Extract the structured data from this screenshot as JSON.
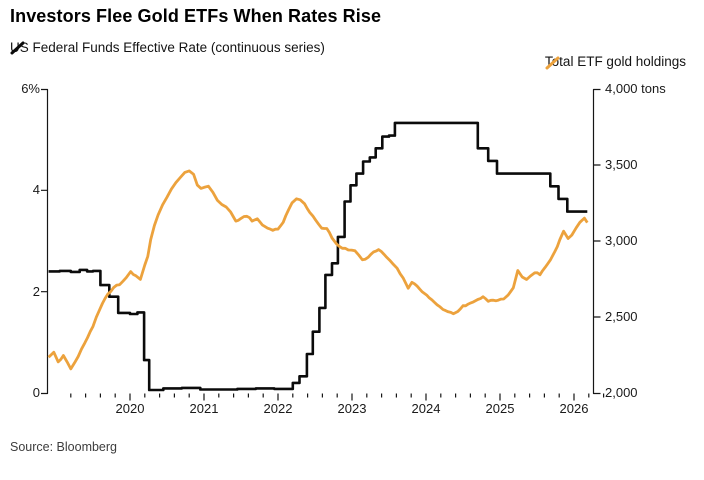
{
  "source": "Source: Bloomberg",
  "legend": {
    "left": {
      "label": "US Federal Funds Effective Rate (continuous series)",
      "color": "#0b0b0b"
    },
    "right": {
      "label": "Total ETF gold holdings",
      "color": "#eca23d"
    }
  },
  "chart_data": {
    "type": "line",
    "title": "Investors Flee Gold ETFs When Rates Rise",
    "grid": false,
    "legend_position": "top",
    "x_axis": {
      "range": [
        2018.9,
        2026.55
      ],
      "minor_tick_step_years": 0.2,
      "year_tick_values": [
        2020,
        2021,
        2022,
        2023,
        2024,
        2025,
        2026
      ],
      "year_labels": [
        "2020",
        "2021",
        "2022",
        "2023",
        "2024",
        "2025",
        "2026"
      ]
    },
    "left_axis": {
      "unit": "%",
      "range": [
        0,
        6
      ],
      "ticks": [
        {
          "v": 0,
          "label": "0"
        },
        {
          "v": 2,
          "label": "2"
        },
        {
          "v": 4,
          "label": "4"
        },
        {
          "v": 6,
          "label": "6%"
        }
      ]
    },
    "right_axis": {
      "unit": "tons",
      "range": [
        2000,
        4000
      ],
      "ticks": [
        {
          "v": 2000,
          "label": "2,000"
        },
        {
          "v": 2500,
          "label": "2,500"
        },
        {
          "v": 3000,
          "label": "3,000"
        },
        {
          "v": 3500,
          "label": "3,500"
        },
        {
          "v": 4000,
          "label": "4,000 tons"
        }
      ]
    },
    "series": [
      {
        "name": "US Federal Funds Effective Rate (continuous series)",
        "axis": "left",
        "color": "#0b0b0b",
        "style": "step",
        "stroke_width": 2.6,
        "points": [
          [
            2018.9,
            2.4
          ],
          [
            2019.05,
            2.41
          ],
          [
            2019.2,
            2.39
          ],
          [
            2019.32,
            2.43
          ],
          [
            2019.42,
            2.4
          ],
          [
            2019.5,
            2.41
          ],
          [
            2019.6,
            2.13
          ],
          [
            2019.72,
            1.9
          ],
          [
            2019.84,
            1.58
          ],
          [
            2020.0,
            1.56
          ],
          [
            2020.1,
            1.59
          ],
          [
            2020.19,
            0.65
          ],
          [
            2020.26,
            0.06
          ],
          [
            2020.45,
            0.09
          ],
          [
            2020.7,
            0.1
          ],
          [
            2020.95,
            0.07
          ],
          [
            2021.2,
            0.07
          ],
          [
            2021.45,
            0.08
          ],
          [
            2021.7,
            0.09
          ],
          [
            2021.95,
            0.08
          ],
          [
            2022.2,
            0.2
          ],
          [
            2022.29,
            0.33
          ],
          [
            2022.39,
            0.77
          ],
          [
            2022.47,
            1.21
          ],
          [
            2022.56,
            1.68
          ],
          [
            2022.64,
            2.33
          ],
          [
            2022.73,
            2.56
          ],
          [
            2022.81,
            3.08
          ],
          [
            2022.9,
            3.78
          ],
          [
            2022.98,
            4.1
          ],
          [
            2023.06,
            4.33
          ],
          [
            2023.15,
            4.57
          ],
          [
            2023.24,
            4.65
          ],
          [
            2023.32,
            4.83
          ],
          [
            2023.41,
            5.06
          ],
          [
            2023.5,
            5.08
          ],
          [
            2023.58,
            5.33
          ],
          [
            2024.7,
            4.83
          ],
          [
            2024.84,
            4.58
          ],
          [
            2024.96,
            4.33
          ],
          [
            2025.68,
            4.08
          ],
          [
            2025.79,
            3.83
          ],
          [
            2025.91,
            3.58
          ],
          [
            2026.18,
            3.58
          ]
        ]
      },
      {
        "name": "Total ETF gold holdings",
        "axis": "right",
        "color": "#eca23d",
        "style": "line",
        "stroke_width": 2.8,
        "points": [
          [
            2018.9,
            2235
          ],
          [
            2018.97,
            2270
          ],
          [
            2019.03,
            2205
          ],
          [
            2019.1,
            2245
          ],
          [
            2019.2,
            2160
          ],
          [
            2019.3,
            2240
          ],
          [
            2019.39,
            2330
          ],
          [
            2019.5,
            2440
          ],
          [
            2019.59,
            2550
          ],
          [
            2019.7,
            2650
          ],
          [
            2019.78,
            2695
          ],
          [
            2019.86,
            2715
          ],
          [
            2019.95,
            2760
          ],
          [
            2020.01,
            2800
          ],
          [
            2020.08,
            2770
          ],
          [
            2020.14,
            2745
          ],
          [
            2020.2,
            2845
          ],
          [
            2020.24,
            2900
          ],
          [
            2020.28,
            3010
          ],
          [
            2020.33,
            3105
          ],
          [
            2020.38,
            3170
          ],
          [
            2020.44,
            3235
          ],
          [
            2020.5,
            3290
          ],
          [
            2020.56,
            3340
          ],
          [
            2020.62,
            3385
          ],
          [
            2020.68,
            3420
          ],
          [
            2020.74,
            3450
          ],
          [
            2020.8,
            3462
          ],
          [
            2020.86,
            3440
          ],
          [
            2020.91,
            3365
          ],
          [
            2020.96,
            3345
          ],
          [
            2021.0,
            3355
          ],
          [
            2021.06,
            3360
          ],
          [
            2021.12,
            3320
          ],
          [
            2021.18,
            3268
          ],
          [
            2021.24,
            3240
          ],
          [
            2021.3,
            3222
          ],
          [
            2021.36,
            3190
          ],
          [
            2021.43,
            3130
          ],
          [
            2021.5,
            3150
          ],
          [
            2021.58,
            3165
          ],
          [
            2021.65,
            3130
          ],
          [
            2021.72,
            3145
          ],
          [
            2021.79,
            3105
          ],
          [
            2021.86,
            3085
          ],
          [
            2021.93,
            3072
          ],
          [
            2022.0,
            3078
          ],
          [
            2022.07,
            3125
          ],
          [
            2022.14,
            3205
          ],
          [
            2022.19,
            3250
          ],
          [
            2022.25,
            3278
          ],
          [
            2022.3,
            3268
          ],
          [
            2022.36,
            3242
          ],
          [
            2022.43,
            3190
          ],
          [
            2022.51,
            3138
          ],
          [
            2022.59,
            3085
          ],
          [
            2022.66,
            3082
          ],
          [
            2022.73,
            3020
          ],
          [
            2022.79,
            2980
          ],
          [
            2022.87,
            2955
          ],
          [
            2022.95,
            2942
          ],
          [
            2023.04,
            2935
          ],
          [
            2023.14,
            2875
          ],
          [
            2023.22,
            2895
          ],
          [
            2023.29,
            2928
          ],
          [
            2023.36,
            2942
          ],
          [
            2023.43,
            2915
          ],
          [
            2023.51,
            2875
          ],
          [
            2023.61,
            2823
          ],
          [
            2023.69,
            2758
          ],
          [
            2023.76,
            2686
          ],
          [
            2023.81,
            2725
          ],
          [
            2023.88,
            2706
          ],
          [
            2023.95,
            2667
          ],
          [
            2024.01,
            2641
          ],
          [
            2024.08,
            2614
          ],
          [
            2024.15,
            2582
          ],
          [
            2024.23,
            2549
          ],
          [
            2024.3,
            2536
          ],
          [
            2024.37,
            2523
          ],
          [
            2024.43,
            2536
          ],
          [
            2024.5,
            2575
          ],
          [
            2024.57,
            2582
          ],
          [
            2024.64,
            2601
          ],
          [
            2024.7,
            2614
          ],
          [
            2024.77,
            2634
          ],
          [
            2024.84,
            2601
          ],
          [
            2024.91,
            2608
          ],
          [
            2024.98,
            2608
          ],
          [
            2025.05,
            2621
          ],
          [
            2025.11,
            2647
          ],
          [
            2025.18,
            2693
          ],
          [
            2025.24,
            2804
          ],
          [
            2025.3,
            2765
          ],
          [
            2025.36,
            2745
          ],
          [
            2025.41,
            2771
          ],
          [
            2025.47,
            2791
          ],
          [
            2025.54,
            2778
          ],
          [
            2025.61,
            2823
          ],
          [
            2025.68,
            2875
          ],
          [
            2025.74,
            2928
          ],
          [
            2025.81,
            3007
          ],
          [
            2025.86,
            3065
          ],
          [
            2025.92,
            3020
          ],
          [
            2025.97,
            3039
          ],
          [
            2026.03,
            3085
          ],
          [
            2026.08,
            3124
          ],
          [
            2026.14,
            3150
          ],
          [
            2026.18,
            3118
          ]
        ]
      }
    ]
  }
}
